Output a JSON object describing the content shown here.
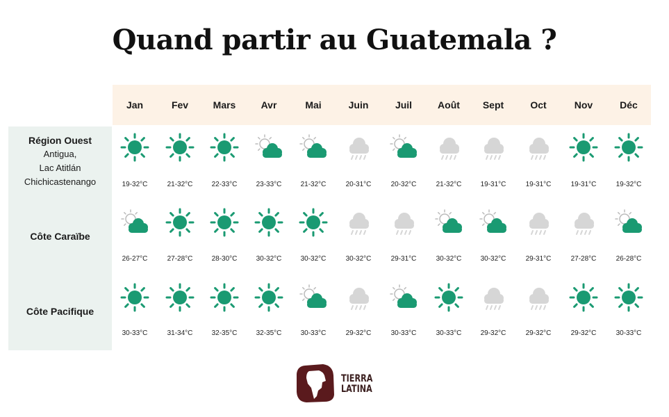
{
  "title": "Quand partir au Guatemala ?",
  "months": [
    "Jan",
    "Fev",
    "Mars",
    "Avr",
    "Mai",
    "Juin",
    "Juil",
    "Août",
    "Sept",
    "Oct",
    "Nov",
    "Déc"
  ],
  "regions": [
    {
      "name": "Région Ouest",
      "subtitle_lines": [
        "Antigua,",
        "Lac Atitlán",
        "Chichicastenango"
      ],
      "weather": [
        "sun-icon",
        "sun-icon",
        "sun-icon",
        "partly-cloudy-icon",
        "partly-cloudy-icon",
        "rain-icon",
        "partly-cloudy-icon",
        "rain-icon",
        "rain-icon",
        "rain-icon",
        "sun-icon",
        "sun-icon"
      ],
      "temps": [
        "19-32°C",
        "21-32°C",
        "22-33°C",
        "23-33°C",
        "21-32°C",
        "20-31°C",
        "20-32°C",
        "21-32°C",
        "19-31°C",
        "19-31°C",
        "19-31°C",
        "19-32°C"
      ]
    },
    {
      "name": "Côte Caraïbe",
      "subtitle_lines": [],
      "weather": [
        "partly-cloudy-icon",
        "sun-icon",
        "sun-icon",
        "sun-icon",
        "sun-icon",
        "rain-icon",
        "rain-icon",
        "partly-cloudy-icon",
        "partly-cloudy-icon",
        "rain-icon",
        "rain-icon",
        "partly-cloudy-icon"
      ],
      "temps": [
        "26-27°C",
        "27-28°C",
        "28-30°C",
        "30-32°C",
        "30-32°C",
        "30-32°C",
        "29-31°C",
        "30-32°C",
        "30-32°C",
        "29-31°C",
        "27-28°C",
        "26-28°C"
      ]
    },
    {
      "name": "Côte Pacifique",
      "subtitle_lines": [],
      "weather": [
        "sun-icon",
        "sun-icon",
        "sun-icon",
        "sun-icon",
        "partly-cloudy-icon",
        "rain-icon",
        "partly-cloudy-icon",
        "sun-icon",
        "rain-icon",
        "rain-icon",
        "sun-icon",
        "sun-icon"
      ],
      "temps": [
        "30-33°C",
        "31-34°C",
        "32-35°C",
        "32-35°C",
        "30-33°C",
        "29-32°C",
        "30-33°C",
        "30-33°C",
        "29-32°C",
        "29-32°C",
        "29-32°C",
        "30-33°C"
      ]
    }
  ],
  "logo": {
    "line1": "TIERRA",
    "line2": "LATINA"
  },
  "colors": {
    "accent": "#1a9a72",
    "month_bar": "#fdf2e6",
    "region_bg": "#ebf2ef",
    "rain": "#d6d6d6",
    "logo": "#5a1a1d"
  }
}
